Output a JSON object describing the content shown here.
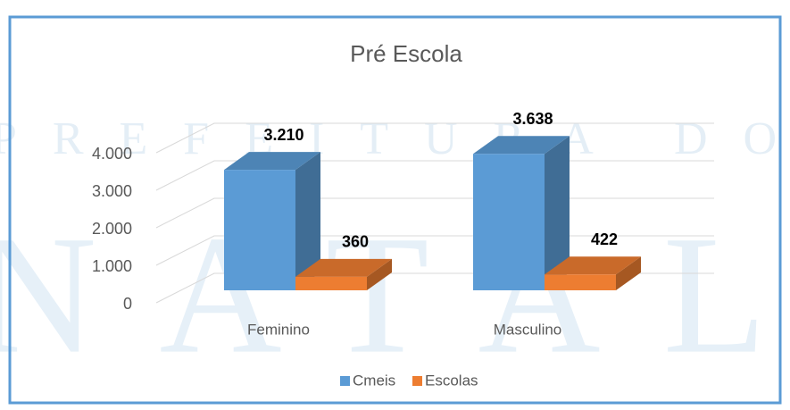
{
  "watermark": [
    "PREFEITURA DO",
    "NATAL"
  ],
  "chart_data": {
    "type": "bar3d",
    "title": "Pré Escola",
    "categories": [
      "Feminino",
      "Masculino"
    ],
    "series": [
      {
        "name": "Cmeis",
        "color": "#5b9bd5",
        "values": [
          3210,
          3638
        ],
        "value_labels": [
          "3.210",
          "3.638"
        ]
      },
      {
        "name": "Escolas",
        "color": "#ed7d31",
        "values": [
          360,
          422
        ],
        "value_labels": [
          "360",
          "422"
        ]
      }
    ],
    "ylim": [
      0,
      4000
    ],
    "yticks": [
      0,
      {
        "value": 1000,
        "label": "1.000"
      },
      {
        "value": 2000,
        "label": "2.000"
      },
      {
        "value": 3000,
        "label": "3.000"
      },
      {
        "value": 4000,
        "label": "4.000"
      }
    ],
    "grid": true,
    "legend": "bottom"
  }
}
